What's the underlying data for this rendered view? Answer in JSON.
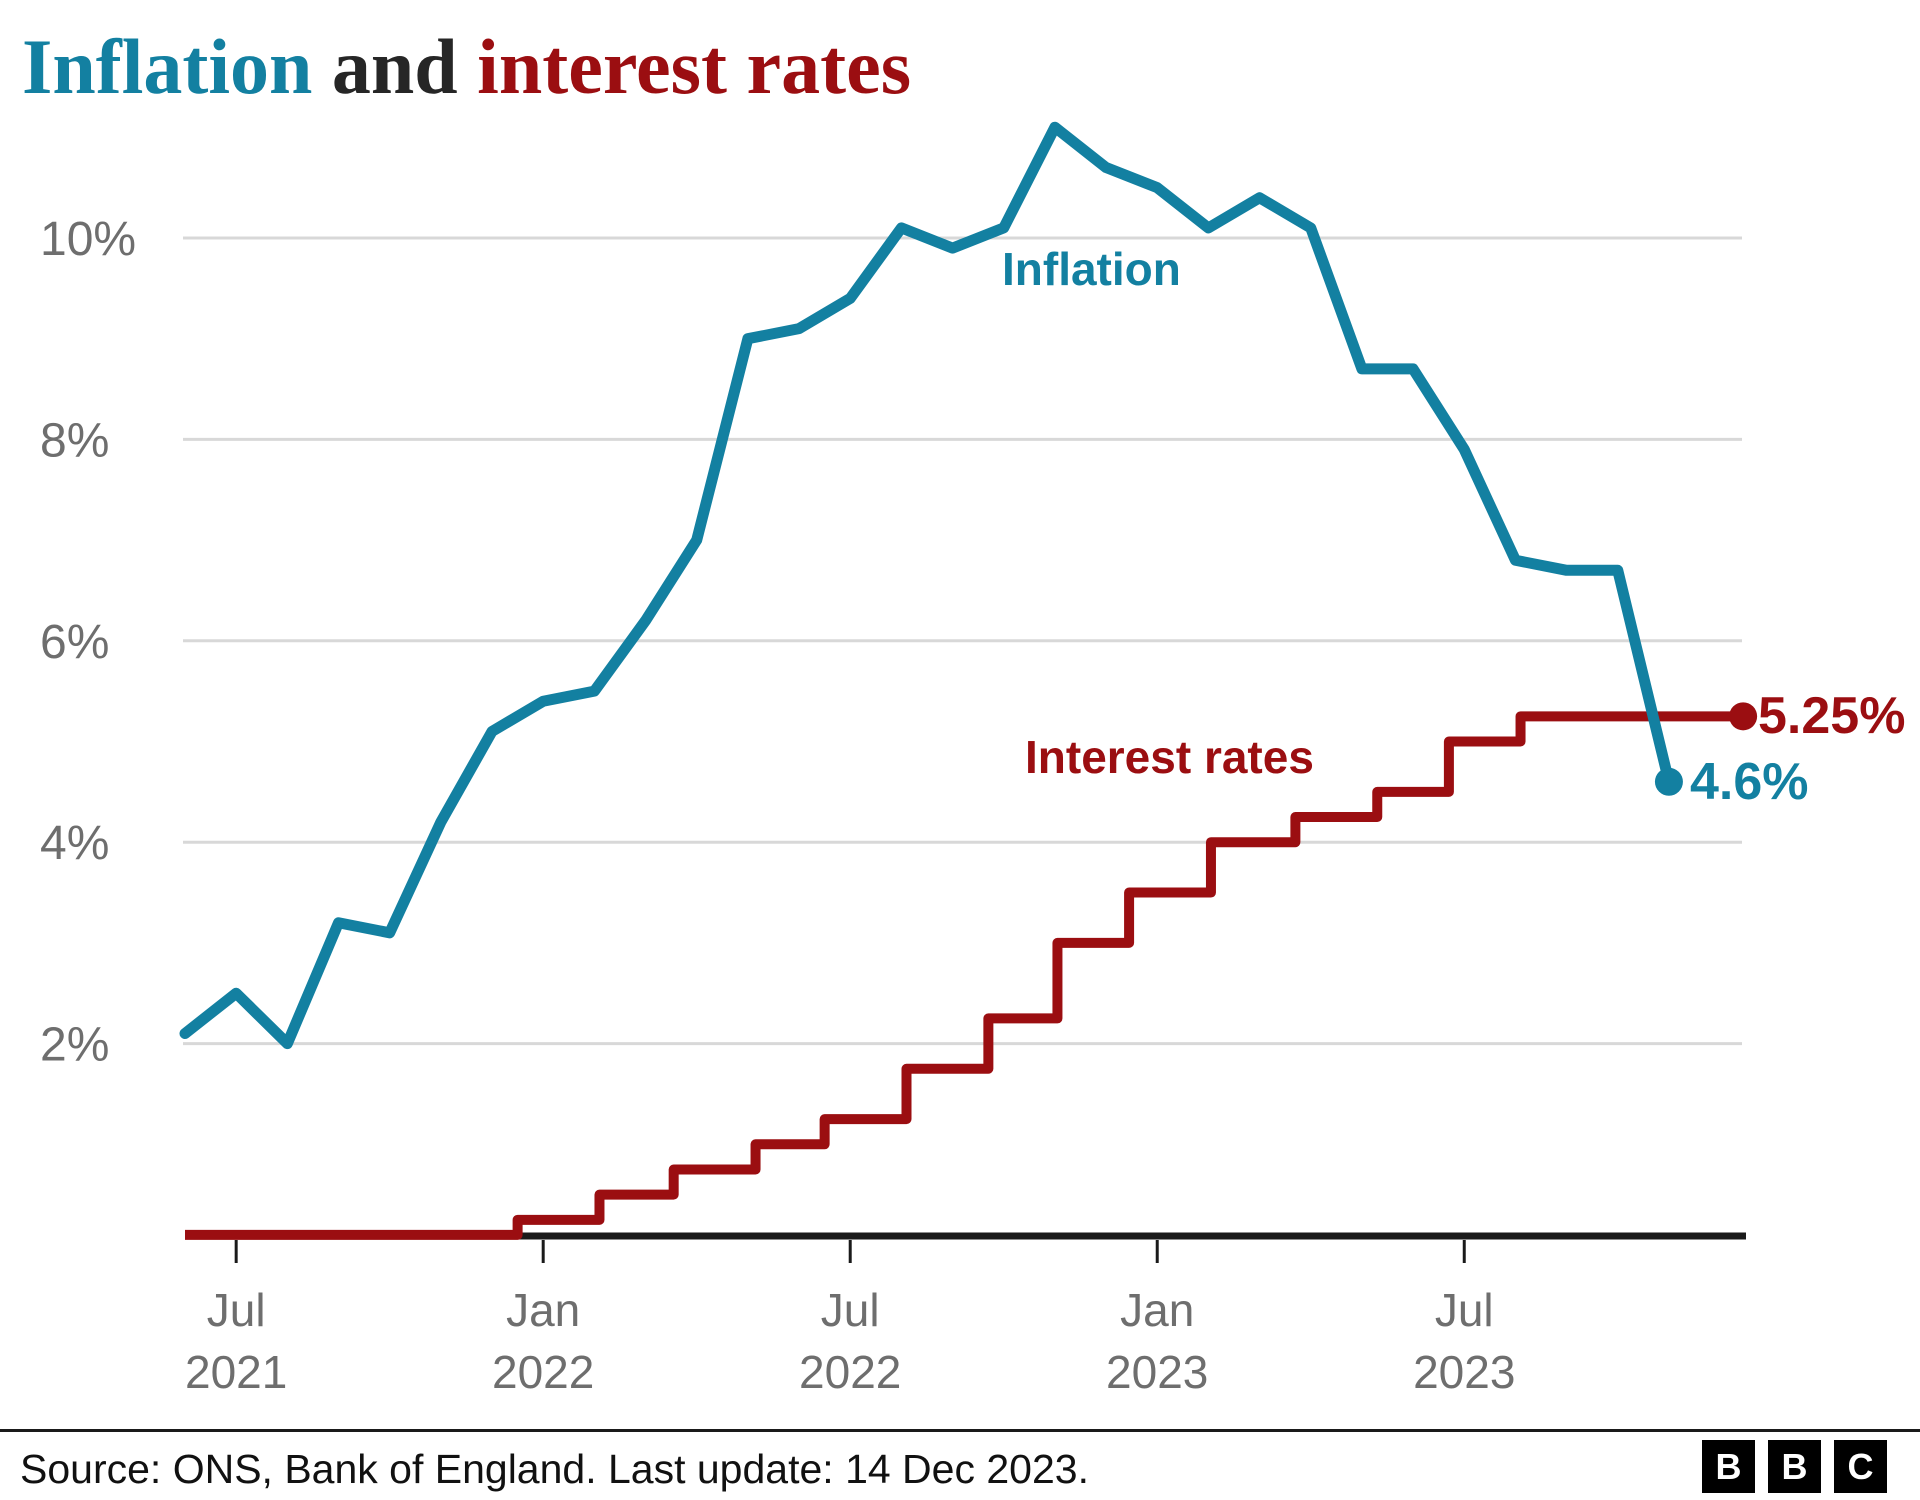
{
  "title": {
    "part1": "Inflation",
    "part2": " and ",
    "part3": "interest rates"
  },
  "colors": {
    "teal": "#1380A1",
    "red": "#9B0E11",
    "title_dark": "#262626",
    "gridline": "#D8D8D8",
    "axis": "#1A1A1A",
    "tick_label": "#6E6E6E",
    "background": "#FFFFFF"
  },
  "chart_data": {
    "type": "line",
    "title": "Inflation and interest rates",
    "ylabel": "percent",
    "ylim": [
      0,
      11.6
    ],
    "grid": "horizontal-only",
    "y_ticks": [
      {
        "label": "2%",
        "value": 2
      },
      {
        "label": "4%",
        "value": 4
      },
      {
        "label": "6%",
        "value": 6
      },
      {
        "label": "8%",
        "value": 8
      },
      {
        "label": "10%",
        "value": 10
      }
    ],
    "x_ticks": [
      {
        "month": "Jul",
        "year": "2021",
        "k": 1
      },
      {
        "month": "Jan",
        "year": "2022",
        "k": 7
      },
      {
        "month": "Jul",
        "year": "2022",
        "k": 13
      },
      {
        "month": "Jan",
        "year": "2023",
        "k": 19
      },
      {
        "month": "Jul",
        "year": "2023",
        "k": 25
      }
    ],
    "series": [
      {
        "name": "Inflation",
        "label": "Inflation",
        "end_label": "4.6%",
        "color": "#1380A1",
        "type": "line",
        "months": [
          "May 2021",
          "Jun 2021",
          "Jul 2021",
          "Aug 2021",
          "Sep 2021",
          "Oct 2021",
          "Nov 2021",
          "Dec 2021",
          "Jan 2022",
          "Feb 2022",
          "Mar 2022",
          "Apr 2022",
          "May 2022",
          "Jun 2022",
          "Jul 2022",
          "Aug 2022",
          "Sep 2022",
          "Oct 2022",
          "Nov 2022",
          "Dec 2022",
          "Jan 2023",
          "Feb 2023",
          "Mar 2023",
          "Apr 2023",
          "May 2023",
          "Jun 2023",
          "Jul 2023",
          "Aug 2023",
          "Sep 2023",
          "Oct 2023"
        ],
        "values": [
          2.1,
          2.5,
          2.0,
          3.2,
          3.1,
          4.2,
          5.1,
          5.4,
          5.5,
          6.2,
          7.0,
          9.0,
          9.1,
          9.4,
          10.1,
          9.9,
          10.1,
          11.1,
          10.7,
          10.5,
          10.1,
          10.4,
          10.1,
          8.7,
          8.7,
          7.9,
          6.8,
          6.7,
          6.7,
          4.6
        ]
      },
      {
        "name": "Interest rates",
        "label": "Interest rates",
        "end_label": "5.25%",
        "color": "#9B0E11",
        "type": "step",
        "steps": [
          {
            "date": "Jun 2021",
            "rate": 0.1,
            "k": 0
          },
          {
            "date": "16 Dec 2021",
            "rate": 0.25,
            "k": 6.5
          },
          {
            "date": "3 Feb 2022",
            "rate": 0.5,
            "k": 8.1
          },
          {
            "date": "17 Mar 2022",
            "rate": 0.75,
            "k": 9.55
          },
          {
            "date": "5 May 2022",
            "rate": 1.0,
            "k": 11.15
          },
          {
            "date": "16 Jun 2022",
            "rate": 1.25,
            "k": 12.5
          },
          {
            "date": "4 Aug 2022",
            "rate": 1.75,
            "k": 14.1
          },
          {
            "date": "22 Sep 2022",
            "rate": 2.25,
            "k": 15.7
          },
          {
            "date": "3 Nov 2022",
            "rate": 3.0,
            "k": 17.05
          },
          {
            "date": "15 Dec 2022",
            "rate": 3.5,
            "k": 18.45
          },
          {
            "date": "2 Feb 2023",
            "rate": 4.0,
            "k": 20.05
          },
          {
            "date": "23 Mar 2023",
            "rate": 4.25,
            "k": 21.7
          },
          {
            "date": "11 May 2023",
            "rate": 4.5,
            "k": 23.3
          },
          {
            "date": "22 Jun 2023",
            "rate": 5.0,
            "k": 24.7
          },
          {
            "date": "3 Aug 2023",
            "rate": 5.25,
            "k": 26.1
          }
        ],
        "end_date": "14 Dec 2023",
        "end_k": 30.45
      }
    ]
  },
  "footer": {
    "source": "Source: ONS, Bank of England. Last update: 14 Dec 2023.",
    "logo": [
      "B",
      "B",
      "C"
    ]
  }
}
